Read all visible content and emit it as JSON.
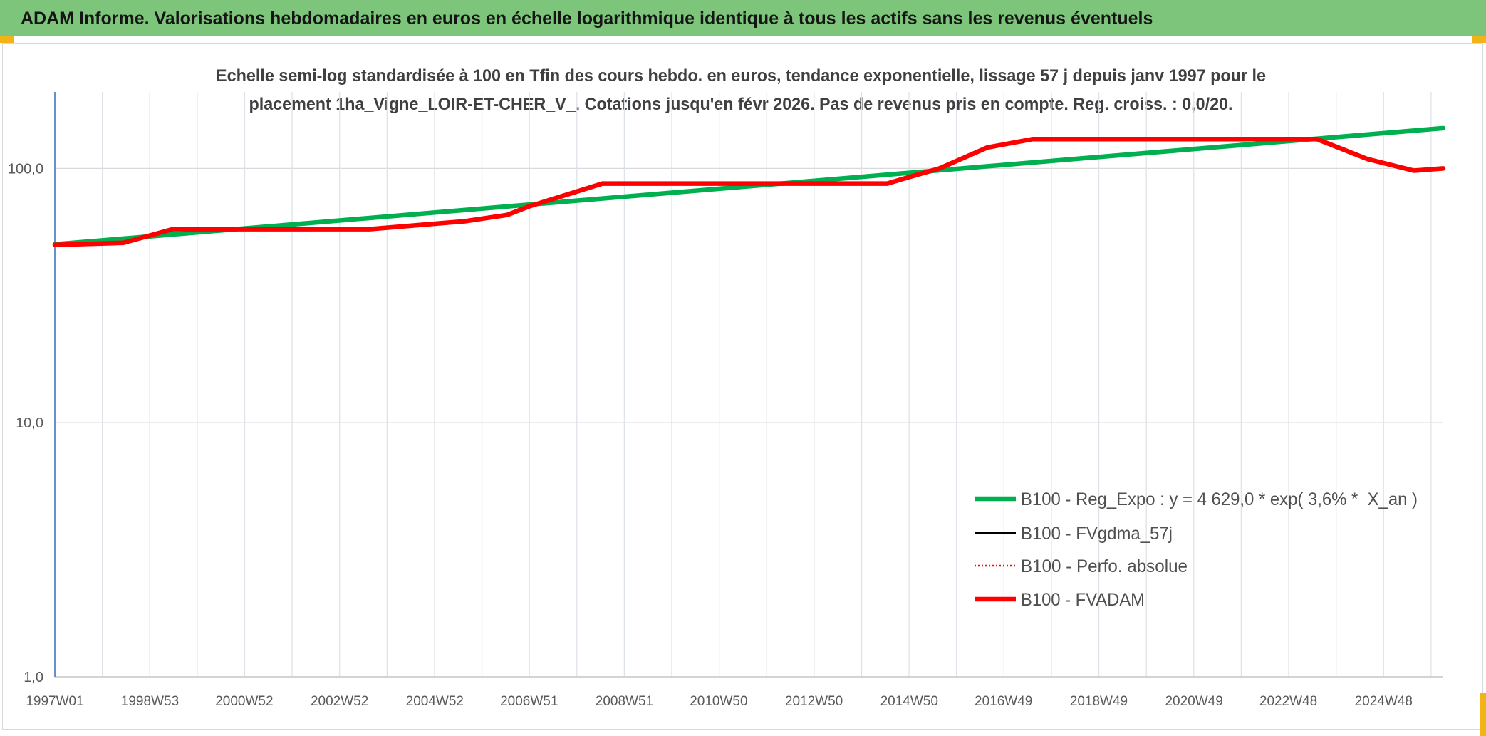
{
  "header": {
    "title": "ADAM Informe. Valorisations hebdomadaires en euros en échelle logarithmique identique à tous les actifs sans les revenus éventuels"
  },
  "colors": {
    "header_background": "#7cc57a",
    "corner_marker": "#f2b316"
  },
  "chart_data": {
    "type": "line",
    "title": [
      "Echelle semi-log standardisée à 100 en Tfin des cours hebdo. en euros, tendance exponentielle, lissage 57 j depuis janv 1997 pour le",
      "placement 1ha_Vigne_LOIR-ET-CHER_V_. Cotations jusqu'en févr 2026. Pas de revenus pris en compte. Reg. croiss. : 0,0/20."
    ],
    "y_scale": "log",
    "ylim": [
      1,
      200
    ],
    "y_ticks": [
      "100,0",
      "10,0",
      "1,0"
    ],
    "y_tick_values": [
      100,
      10,
      1
    ],
    "xlim": [
      "1997W01",
      "2026W09"
    ],
    "x_ticks": [
      "1997W01",
      "1998W53",
      "2000W52",
      "2002W52",
      "2004W52",
      "2006W51",
      "2008W51",
      "2010W50",
      "2012W50",
      "2014W50",
      "2016W49",
      "2018W49",
      "2020W49",
      "2022W48",
      "2024W48"
    ],
    "grid": true,
    "legend_position": "bottom-right",
    "series": [
      {
        "name": "B100 - Reg_Expo : y = 4 629,0 * exp( 3,6% *  X_an )",
        "color": "#00b050",
        "style": "solid-thick",
        "x": [
          "1997W01",
          "2026W09"
        ],
        "values": [
          50.3,
          144.0
        ]
      },
      {
        "name": "B100 - FVgdma_57j",
        "color": "#000000",
        "style": "solid-thin",
        "x": [],
        "values": []
      },
      {
        "name": "B100 - Perfo. absolue",
        "color": "#ff0000",
        "style": "dotted",
        "x": [],
        "values": []
      },
      {
        "name": "B100 - FVADAM",
        "color": "#ff0000",
        "style": "solid-thick",
        "x": [
          "1997W01",
          "1998W24",
          "1999W26",
          "2003W33",
          "2005W33",
          "2006W27",
          "2006W51",
          "2008W27",
          "2014W26",
          "2014W52",
          "2015W31",
          "2016W31",
          "2017W29",
          "2023W27",
          "2024W30",
          "2025W29",
          "2026W09"
        ],
        "values": [
          50.0,
          51.0,
          57.7,
          57.7,
          62.0,
          65.6,
          70.9,
          87.2,
          87.2,
          93.0,
          100.0,
          120.8,
          130.5,
          130.5,
          109.0,
          98.0,
          100.0
        ]
      }
    ]
  }
}
